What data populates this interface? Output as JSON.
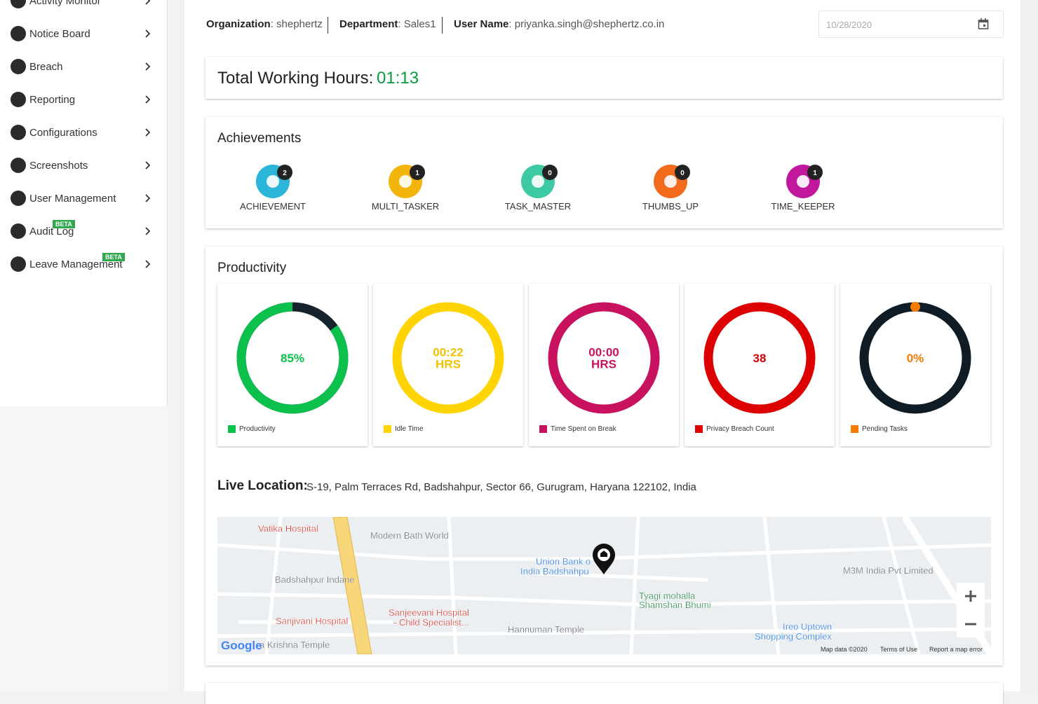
{
  "sidebar": {
    "items": [
      {
        "label": "Activity Monitor"
      },
      {
        "label": "Notice Board"
      },
      {
        "label": "Breach"
      },
      {
        "label": "Reporting"
      },
      {
        "label": "Configurations"
      },
      {
        "label": "Screenshots"
      },
      {
        "label": "User Management"
      },
      {
        "label": "Audit Log",
        "badge": "BETA"
      },
      {
        "label": "Leave Management",
        "badge": "BETA"
      }
    ]
  },
  "header": {
    "fields": [
      {
        "label": "Organization",
        "value": ": shephertz"
      },
      {
        "label": "Department",
        "value": ": Sales1"
      },
      {
        "label": "User Name",
        "value": ": priyanka.singh@shephertz.co.in"
      }
    ],
    "date": "10/28/2020"
  },
  "working_hours": {
    "label": "Total Working Hours:",
    "value": "01:13"
  },
  "achievements": {
    "title": "Achievements",
    "items": [
      {
        "name": "ACHIEVEMENT",
        "count": "2",
        "color": "#2bb5d8"
      },
      {
        "name": "MULTI_TASKER",
        "count": "1",
        "color": "#f3b40c"
      },
      {
        "name": "TASK_MASTER",
        "count": "0",
        "color": "#3dc9a2"
      },
      {
        "name": "THUMBS_UP",
        "count": "0",
        "color": "#f26a1b"
      },
      {
        "name": "TIME_KEEPER",
        "count": "1",
        "color": "#c1179d"
      }
    ]
  },
  "productivity": {
    "title": "Productivity",
    "cards": [
      {
        "label": "Productivity",
        "value": 85,
        "value_label": "85%",
        "color": "#0cc14b",
        "text_color": "#0cc14b",
        "track_color": "#16222c"
      },
      {
        "label": "Idle Time",
        "lines": [
          "00:22",
          "HRS"
        ],
        "color": "#ffd400",
        "text_color": "#f2c200"
      },
      {
        "label": "Time Spent on Break",
        "lines": [
          "00:00",
          "HRS"
        ],
        "color": "#c8125f",
        "text_color": "#c8125f"
      },
      {
        "label": "Privacy Breach Count",
        "lines": [
          "38"
        ],
        "color": "#dd0000",
        "text_color": "#cc0000"
      },
      {
        "label": "Pending Tasks",
        "value": 0,
        "value_label": "0%",
        "color": "#f57c00",
        "text_color": "#f57c00",
        "track_color": "#0f1c26"
      }
    ]
  },
  "location": {
    "label": "Live Location:",
    "address": "S-19, Palm Terraces Rd, Badshahpur, Sector 66, Gurugram, Haryana 122102, India",
    "map_labels": [
      {
        "text": "Vatika Hospital",
        "kind": "red"
      },
      {
        "text": "Modern Bath World",
        "kind": "grey"
      },
      {
        "text": "Badshahpur Indane",
        "kind": "grey"
      },
      {
        "text": "Union Bank o",
        "kind": "blue"
      },
      {
        "text": "India Badshahpu",
        "kind": "blue"
      },
      {
        "text": "M3M India Pvt Limited",
        "kind": "grey"
      },
      {
        "text": "Tyagi mohalla",
        "kind": "green"
      },
      {
        "text": "Shamshan Bhumi",
        "kind": "green"
      },
      {
        "text": "Sanjeevani Hospital",
        "kind": "red"
      },
      {
        "text": "- Child Specialist...",
        "kind": "red"
      },
      {
        "text": "Sanjivani Hospital",
        "kind": "red"
      },
      {
        "text": "Hannuman Temple",
        "kind": "grey"
      },
      {
        "text": "Ireo Uptown",
        "kind": "blue"
      },
      {
        "text": "Shopping Complex",
        "kind": "blue"
      },
      {
        "text": "a Krishna Temple",
        "kind": "grey"
      }
    ],
    "footer": [
      "Map data ©2020",
      "Terms of Use",
      "Report a map error"
    ],
    "logo": "Google"
  }
}
